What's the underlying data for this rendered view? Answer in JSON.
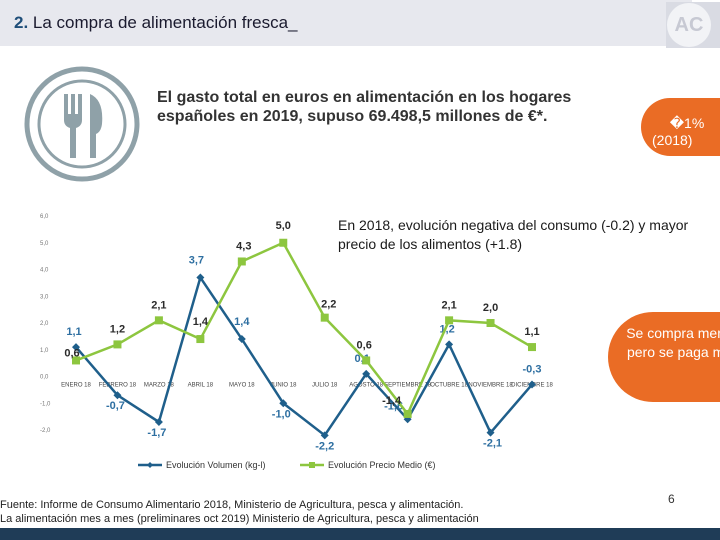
{
  "header": {
    "number": "2.",
    "title": "La compra de alimentación fresca_"
  },
  "logo": {
    "text": "AC"
  },
  "intro": {
    "text": "El gasto total en euros en alimentación en los hogares españoles en 2019, supuso 69.498,5 millones de €*."
  },
  "badge": {
    "text": "�1%",
    "note": "(2018)"
  },
  "trend": {
    "text": "En 2018, evolución negativa del consumo (-0.2) y mayor precio de los alimentos (+1.8)"
  },
  "callout": {
    "text": "Se compra menos pero se paga más"
  },
  "source": {
    "line1": "Fuente: Informe de Consumo Alimentario 2018, Ministerio de Agricultura, pesca y alimentación.",
    "line2": "La alimentación mes a mes (preliminares oct 2019) Ministerio de Agricultura, pesca y alimentación"
  },
  "page_number": "6",
  "colors": {
    "volume": "#1f5f8b",
    "price": "#8dc63f",
    "orange": "#ea6c25",
    "header": "#e7e8ee"
  },
  "icons": {
    "cutlery": "fork-knife-icon"
  },
  "chart_data": {
    "type": "line",
    "categories": [
      "ENERO 18",
      "FEBRERO 18",
      "MARZO 18",
      "ABRIL 18",
      "MAYO 18",
      "JUNIO 18",
      "JULIO 18",
      "AGOSTO 18",
      "SEPTIEMBRE 18",
      "OCTUBRE 18",
      "NOVIEMBRE 18",
      "DICIEMBRE 18"
    ],
    "y_ticks": [
      "6,0",
      "5,0",
      "4,0",
      "3,0",
      "2,0",
      "1,0",
      "0,0",
      "-1,0",
      "-2,0"
    ],
    "ylim": [
      -2,
      6
    ],
    "series": [
      {
        "name": "Evolución Volumen (kg-l)",
        "color": "#1f5f8b",
        "values": [
          1.1,
          -0.7,
          -1.7,
          3.7,
          1.4,
          -1.0,
          -2.2,
          0.1,
          -1.6,
          1.2,
          -2.1,
          -0.3
        ],
        "labels": [
          "1,1",
          "-0,7",
          "-1,7",
          "3,7",
          "1,4",
          "-1,0",
          "-2,2",
          "0,1",
          "-1,6",
          "1,2",
          "-2,1",
          "-0,3"
        ]
      },
      {
        "name": "Evolución Precio Medio (€)",
        "color": "#8dc63f",
        "values": [
          0.6,
          1.2,
          2.1,
          1.4,
          4.3,
          5.0,
          2.2,
          0.6,
          -1.4,
          2.1,
          2.0,
          1.1
        ],
        "labels": [
          "0,6",
          "1,2",
          "2,1",
          "1,4",
          "4,3",
          "5,0",
          "2,2",
          "0,6",
          "-1,4",
          "2,1",
          "2,0",
          "1,1"
        ]
      }
    ]
  }
}
